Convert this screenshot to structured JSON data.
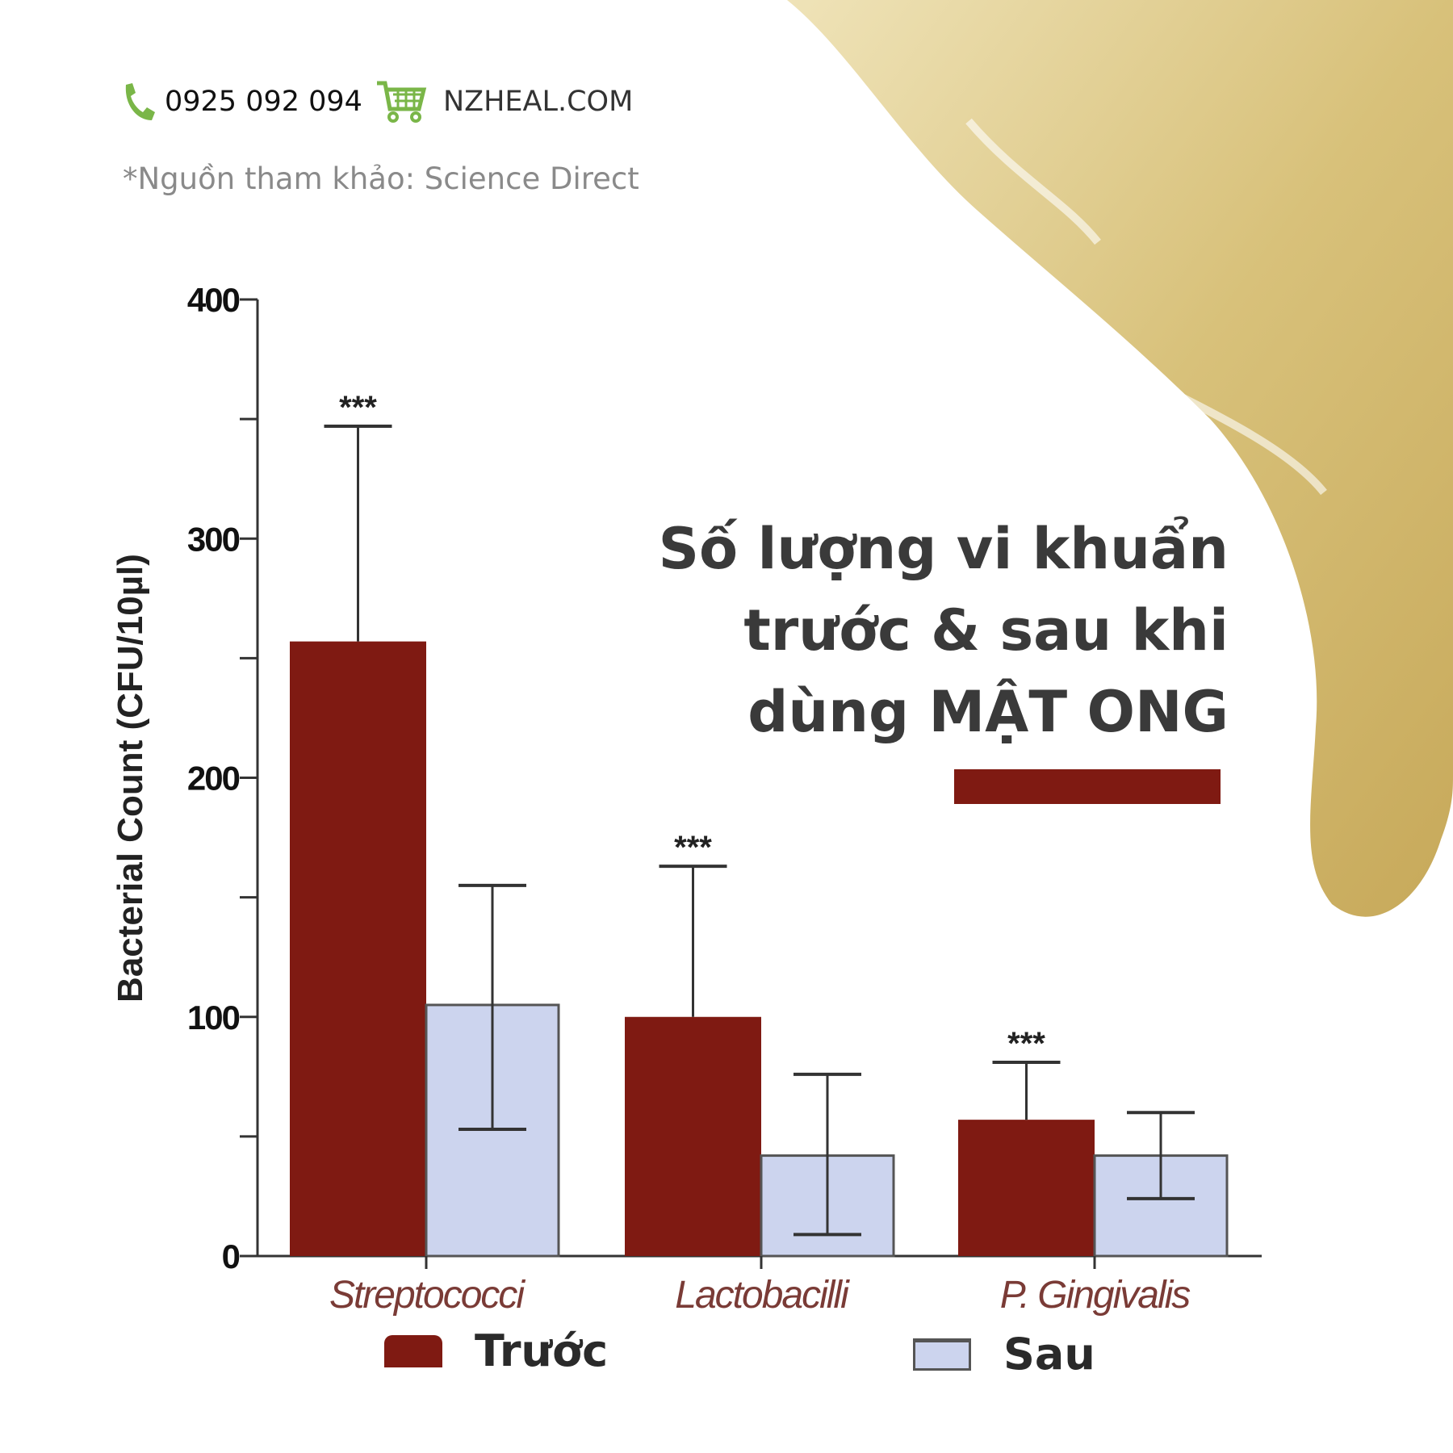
{
  "header": {
    "phone": "0925 092 094",
    "website": "NZHEAL.COM",
    "source": "*Nguồn tham khảo: Science Direct"
  },
  "title_lines": [
    "Số lượng vi khuẩn",
    "trước & sau khi",
    "dùng MẬT ONG"
  ],
  "colors": {
    "before": "#7f1a12",
    "after": "#ccd4ee",
    "accent": "#7f1a12",
    "icon_green": "#7ab648",
    "honey": "#d9c27a"
  },
  "chart_data": {
    "type": "bar",
    "ylabel": "Bacterial Count (CFU/10µl)",
    "ylim": [
      0,
      400
    ],
    "yticks": [
      "0",
      "100",
      "200",
      "300",
      "400"
    ],
    "categories": [
      "Streptococci",
      "Lactobacilli",
      "P. Gingivalis"
    ],
    "series": [
      {
        "name": "Trước",
        "values": [
          257,
          100,
          57
        ],
        "error_upper": [
          347,
          163,
          81
        ],
        "error_lower": null
      },
      {
        "name": "Sau",
        "values": [
          105,
          42,
          42
        ],
        "error_upper": [
          155,
          76,
          60
        ],
        "error_lower": [
          53,
          9,
          24
        ]
      }
    ],
    "annotations": [
      "***",
      "***",
      "***"
    ],
    "legend": "bottom",
    "grid": false
  }
}
